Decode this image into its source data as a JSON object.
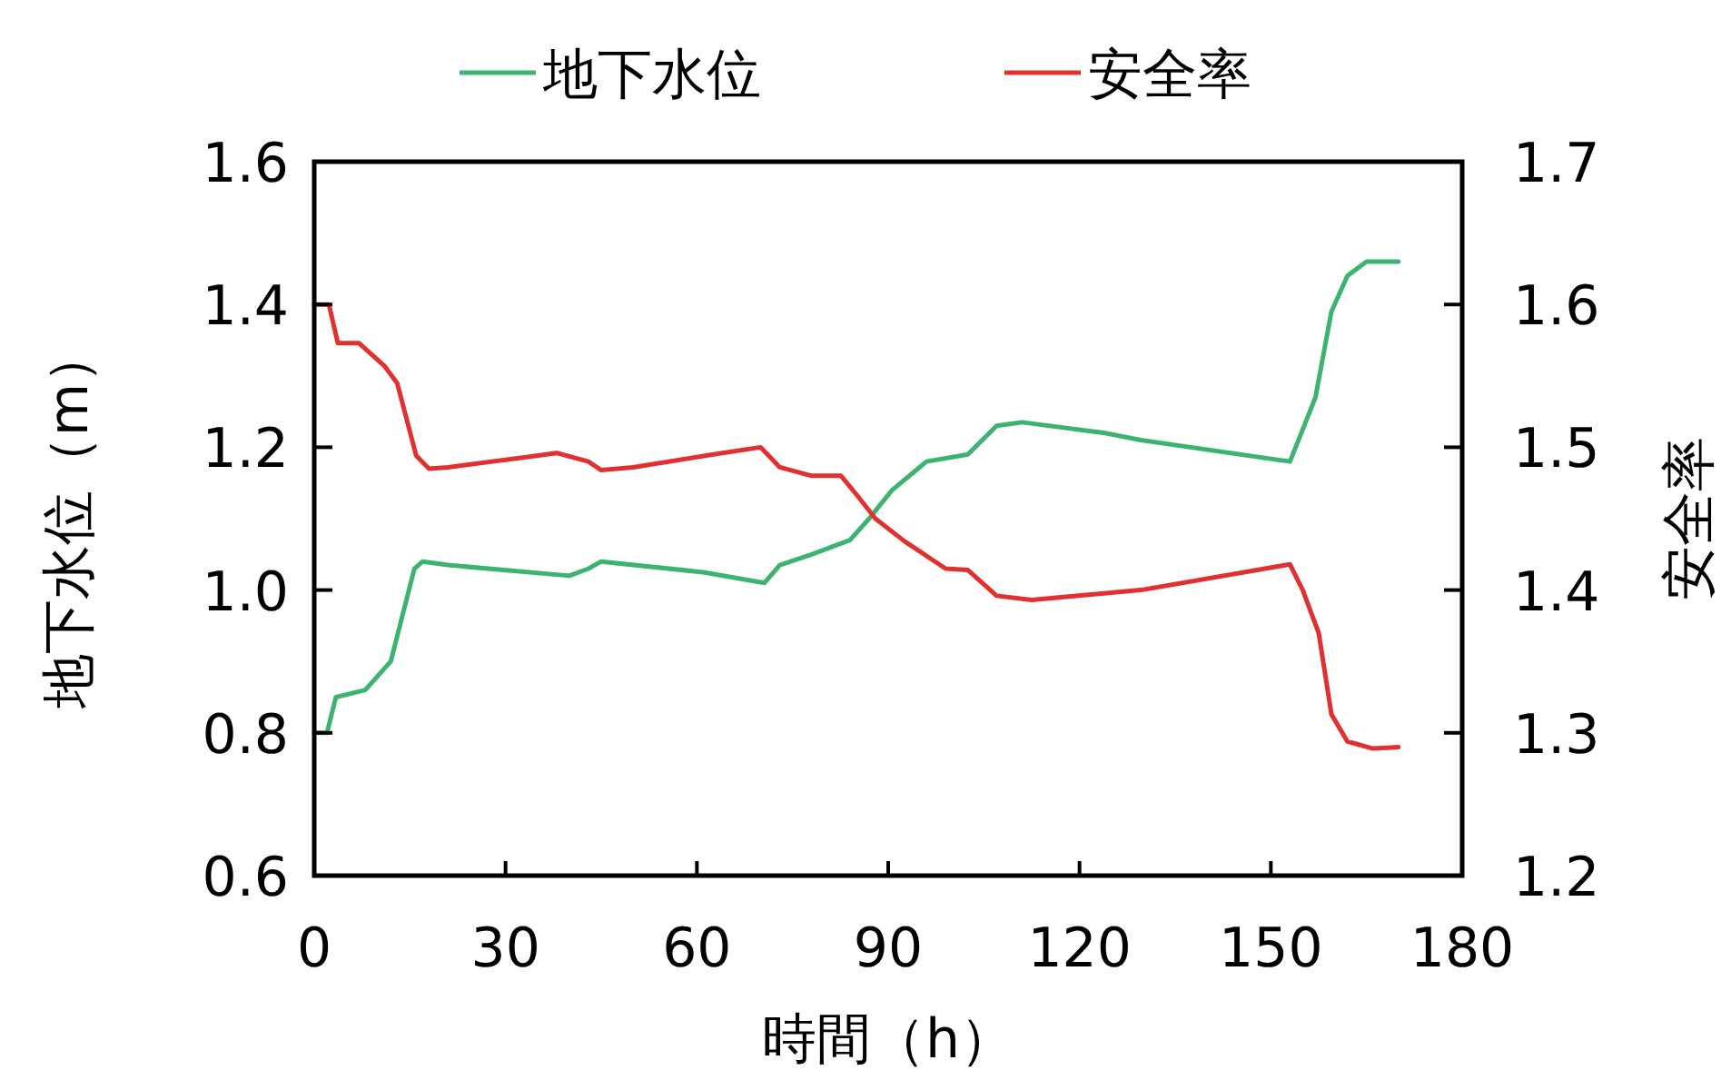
{
  "chart_data": {
    "type": "line",
    "xlabel": "時間（h）",
    "ylabel": "地下水位（m）",
    "y2label": "安全率",
    "legend": "top",
    "grid": false,
    "xlim": [
      0,
      180
    ],
    "xticks": [
      0,
      30,
      60,
      90,
      120,
      150,
      180
    ],
    "ylim": [
      0.6,
      1.6
    ],
    "yticks": [
      {
        "value": 0.6,
        "label": "0.6"
      },
      {
        "value": 0.8,
        "label": "0.8"
      },
      {
        "value": 1,
        "label": "1.0"
      },
      {
        "value": 1.2,
        "label": "1.2"
      },
      {
        "value": 1.4,
        "label": "1.4"
      },
      {
        "value": 1.6,
        "label": "1.6"
      }
    ],
    "y2lim": [
      1.2,
      1.7
    ],
    "y2ticks": [
      {
        "value": 1.2,
        "label": "1.2"
      },
      {
        "value": 1.3,
        "label": "1.3"
      },
      {
        "value": 1.4,
        "label": "1.4"
      },
      {
        "value": 1.5,
        "label": "1.5"
      },
      {
        "value": 1.6,
        "label": "1.6"
      },
      {
        "value": 1.7,
        "label": "1.7"
      }
    ],
    "series": [
      {
        "name": "地下水位",
        "color": "#3cb371",
        "x": [
          0,
          2,
          3.4,
          8,
          12,
          15.7,
          17,
          21,
          40,
          43,
          45,
          61,
          70.6,
          73,
          78,
          84,
          87,
          90.6,
          96,
          102.5,
          107,
          111,
          124,
          129.6,
          153,
          157,
          159.5,
          162,
          165,
          170
        ],
        "values": [
          0.8,
          0.8,
          0.85,
          0.86,
          0.9,
          1.03,
          1.04,
          1.035,
          1.02,
          1.03,
          1.04,
          1.025,
          1.01,
          1.035,
          1.05,
          1.07,
          1.1,
          1.14,
          1.18,
          1.19,
          1.23,
          1.235,
          1.22,
          1.21,
          1.18,
          1.27,
          1.39,
          1.44,
          1.46,
          1.46
        ]
      },
      {
        "name": "安全率",
        "color": "#e03030",
        "axis": "y2",
        "x": [
          0,
          2.3,
          3.7,
          7,
          11,
          13,
          16,
          18,
          21,
          33,
          38,
          43,
          45,
          50,
          64,
          70,
          73,
          78,
          82.6,
          85,
          88,
          92.6,
          99,
          102.5,
          107,
          112.5,
          129.6,
          153,
          155,
          157.5,
          159.5,
          162,
          166,
          170
        ],
        "values": [
          1.6,
          1.6,
          1.573,
          1.573,
          1.557,
          1.545,
          1.494,
          1.485,
          1.486,
          1.493,
          1.496,
          1.49,
          1.484,
          1.486,
          1.496,
          1.5,
          1.486,
          1.48,
          1.48,
          1.467,
          1.45,
          1.434,
          1.415,
          1.414,
          1.396,
          1.393,
          1.4,
          1.418,
          1.4,
          1.37,
          1.313,
          1.294,
          1.289,
          1.29
        ]
      }
    ]
  }
}
